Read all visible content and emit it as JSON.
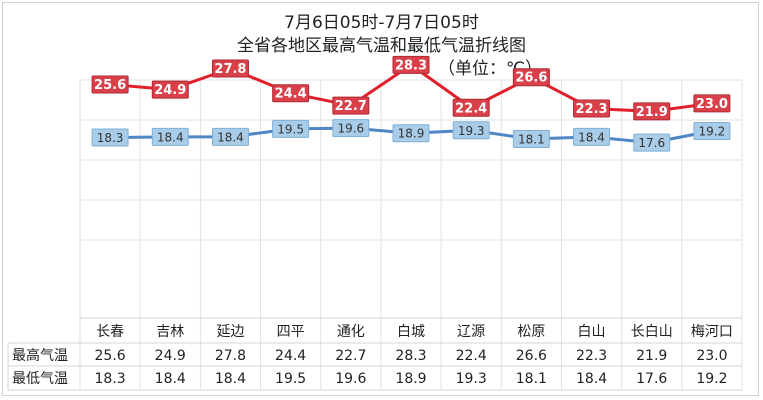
{
  "chart_data": {
    "type": "line",
    "title_lines": [
      "7月6日05时-7月7日05时",
      "全省各地区最高气温和最低气温折线图",
      "（单位：℃）"
    ],
    "categories": [
      "长春",
      "吉林",
      "延边",
      "四平",
      "通化",
      "白城",
      "辽源",
      "松原",
      "白山",
      "长白山",
      "梅河口"
    ],
    "series": [
      {
        "name": "最高气温",
        "color": "#e0202a",
        "label_bg": "#d9404a",
        "label_text": "#ffffff",
        "values": [
          25.6,
          24.9,
          27.8,
          24.4,
          22.7,
          28.3,
          22.4,
          26.6,
          22.3,
          21.9,
          23.0
        ]
      },
      {
        "name": "最低气温",
        "color": "#4f86c6",
        "label_bg": "#a9cde8",
        "label_text": "#333333",
        "values": [
          18.3,
          18.4,
          18.4,
          19.5,
          19.6,
          18.9,
          19.3,
          18.1,
          18.4,
          17.6,
          19.2
        ]
      }
    ],
    "value_format": "0.0",
    "grid": true,
    "data_table": true
  }
}
